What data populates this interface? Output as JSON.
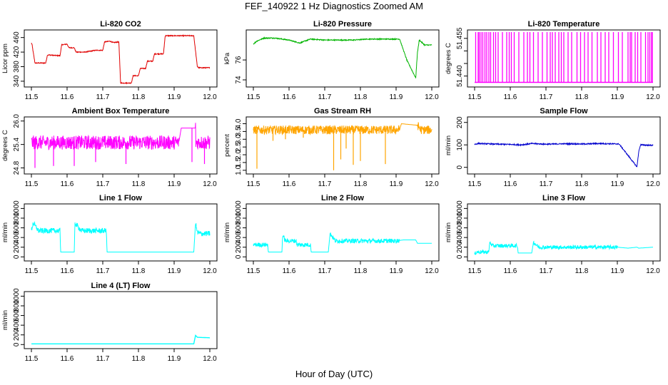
{
  "page": {
    "title": "FEF_140922  1 Hz Diagnostics Zoomed AM",
    "xlabel": "Hour of Day (UTC)"
  },
  "chart_data": [
    {
      "type": "line",
      "title": "Li-820 CO2",
      "ylabel": "Licor ppm",
      "color": "#e00000",
      "xlim": [
        11.5,
        12.0
      ],
      "ylim": [
        330,
        475
      ],
      "xticks": [
        "11.5",
        "11.6",
        "11.7",
        "11.8",
        "11.9",
        "12.0"
      ],
      "yticks": [
        340,
        380,
        420,
        460
      ],
      "ytick_labels": [
        "340",
        "380",
        "420",
        "460"
      ],
      "series": [
        {
          "x": [
            11.5,
            11.502,
            11.505,
            11.51,
            11.54,
            11.545,
            11.55,
            11.58,
            11.585,
            11.6,
            11.605,
            11.62,
            11.625,
            11.65,
            11.68,
            11.7,
            11.705,
            11.72,
            11.73,
            11.745,
            11.75,
            11.78,
            11.785,
            11.8,
            11.805,
            11.82,
            11.825,
            11.84,
            11.845,
            11.87,
            11.875,
            11.95,
            11.955,
            11.965,
            11.97,
            12.0
          ],
          "y": [
            445,
            440,
            420,
            390,
            390,
            412,
            412,
            410,
            440,
            442,
            432,
            432,
            420,
            420,
            425,
            425,
            448,
            450,
            446,
            448,
            335,
            335,
            355,
            355,
            375,
            375,
            395,
            395,
            415,
            415,
            465,
            465,
            465,
            380,
            377,
            377
          ]
        }
      ],
      "noise": 1.2
    },
    {
      "type": "line",
      "title": "Li-820 Pressure",
      "ylabel": "kPa",
      "color": "#00b400",
      "xlim": [
        11.5,
        12.0
      ],
      "ylim": [
        73.5,
        78.8
      ],
      "xticks": [
        "11.5",
        "11.6",
        "11.7",
        "11.8",
        "11.9",
        "12.0"
      ],
      "yticks": [
        74,
        76
      ],
      "ytick_labels": [
        "74",
        "76"
      ],
      "series": [
        {
          "x": [
            11.5,
            11.51,
            11.53,
            11.56,
            11.6,
            11.63,
            11.66,
            11.7,
            11.74,
            11.78,
            11.82,
            11.86,
            11.91,
            11.93,
            11.955,
            11.96,
            11.965,
            11.98,
            12.0
          ],
          "y": [
            77.6,
            77.9,
            78.2,
            78.2,
            78.0,
            77.7,
            78.1,
            78.0,
            78.0,
            78.0,
            78.1,
            78.1,
            78.1,
            76.0,
            74.2,
            76.8,
            78.0,
            77.5,
            77.5
          ]
        }
      ],
      "noise": 0.05
    },
    {
      "type": "line",
      "title": "Li-820 Temperature",
      "ylabel": "degrees C",
      "color": "#ff00ff",
      "xlim": [
        11.5,
        12.0
      ],
      "ylim": [
        51.4365,
        51.4575
      ],
      "xticks": [
        "11.5",
        "11.6",
        "11.7",
        "11.8",
        "11.9",
        "12.0"
      ],
      "yticks": [
        51.44,
        51.445,
        51.45,
        51.455
      ],
      "ytick_labels": [
        "51.440",
        "",
        "",
        "51.455"
      ],
      "series": [
        {
          "x": [
            11.5,
            12.0
          ],
          "y": [
            51.4375,
            51.4375
          ]
        }
      ],
      "spikes": {
        "to": 51.4575,
        "x": [
          11.503,
          11.51,
          11.513,
          11.518,
          11.523,
          11.529,
          11.534,
          11.54,
          11.545,
          11.553,
          11.559,
          11.566,
          11.578,
          11.59,
          11.597,
          11.603,
          11.611,
          11.624,
          11.638,
          11.648,
          11.655,
          11.665,
          11.678,
          11.69,
          11.703,
          11.712,
          11.718,
          11.726,
          11.736,
          11.743,
          11.75,
          11.762,
          11.772,
          11.787,
          11.797,
          11.808,
          11.818,
          11.829,
          11.844,
          11.854,
          11.866,
          11.876,
          11.889,
          11.903,
          11.914,
          11.93,
          11.936,
          11.94,
          11.95,
          11.957,
          11.966,
          11.979,
          11.986,
          11.991,
          11.996,
          11.998
        ]
      }
    },
    {
      "type": "line",
      "title": "Ambient Box Temperature",
      "ylabel": "degrees C",
      "color": "#ff00ff",
      "xlim": [
        11.5,
        12.0
      ],
      "ylim": [
        24.7,
        26.05
      ],
      "xticks": [
        "11.5",
        "11.6",
        "11.7",
        "11.8",
        "11.9",
        "12.0"
      ],
      "yticks": [
        24.8,
        25.4,
        26.0
      ],
      "ytick_labels": [
        "24.8",
        "25.4",
        "26.0"
      ],
      "series": [
        {
          "x": [
            11.5,
            11.6,
            11.7,
            11.8,
            11.913,
            11.92,
            11.96,
            11.96,
            12.0
          ],
          "y": [
            25.45,
            25.45,
            25.45,
            25.45,
            25.45,
            25.82,
            25.82,
            25.45,
            25.45
          ]
        }
      ],
      "noise": 0.18,
      "noise_x": [
        11.5,
        11.913
      ],
      "noise2_x": [
        11.96,
        12.0
      ],
      "drops": [
        [
          11.51,
          24.8
        ],
        [
          11.562,
          24.85
        ],
        [
          11.62,
          24.85
        ],
        [
          11.68,
          24.95
        ],
        [
          11.765,
          24.9
        ],
        [
          11.95,
          24.95
        ],
        [
          11.985,
          24.9
        ]
      ]
    },
    {
      "type": "line",
      "title": "Gas Stream RH",
      "ylabel": "percent",
      "color": "#ffa500",
      "xlim": [
        11.5,
        12.0
      ],
      "ylim": [
        0.9,
        4.3
      ],
      "xticks": [
        "11.5",
        "11.6",
        "11.7",
        "11.8",
        "11.9",
        "12.0"
      ],
      "yticks": [
        1.0,
        1.5,
        2.0,
        2.5,
        3.0,
        3.5,
        4.0
      ],
      "ytick_labels": [
        "1.0",
        "1.5",
        "2.0",
        "2.5",
        "3.0",
        "3.5",
        "4.0"
      ],
      "series": [
        {
          "x": [
            11.5,
            11.9,
            11.91,
            11.915,
            11.96,
            11.97,
            12.0
          ],
          "y": [
            3.6,
            3.6,
            3.65,
            4.0,
            3.9,
            3.6,
            3.6
          ]
        }
      ],
      "noise": 0.28,
      "noise_x": [
        11.5,
        11.91
      ],
      "noise2_x": [
        11.96,
        12.0
      ],
      "drops": [
        [
          11.51,
          1.1
        ],
        [
          11.555,
          2.9
        ],
        [
          11.59,
          3.0
        ],
        [
          11.64,
          3.1
        ],
        [
          11.725,
          1.0
        ],
        [
          11.745,
          1.7
        ],
        [
          11.76,
          2.4
        ],
        [
          11.78,
          1.35
        ],
        [
          11.8,
          1.6
        ],
        [
          11.87,
          1.4
        ]
      ]
    },
    {
      "type": "line",
      "title": "Sample Flow",
      "ylabel": "ml/min",
      "color": "#0000cd",
      "xlim": [
        11.5,
        12.0
      ],
      "ylim": [
        -20,
        215
      ],
      "xticks": [
        "11.5",
        "11.6",
        "11.7",
        "11.8",
        "11.9",
        "12.0"
      ],
      "yticks": [
        0,
        100,
        200
      ],
      "ytick_labels": [
        "0",
        "100",
        "200"
      ],
      "series": [
        {
          "x": [
            11.5,
            11.51,
            11.55,
            11.6,
            11.63,
            11.66,
            11.7,
            11.75,
            11.8,
            11.85,
            11.905,
            11.955,
            11.96,
            11.965,
            12.0
          ],
          "y": [
            102,
            106,
            104,
            102,
            100,
            106,
            103,
            105,
            104,
            106,
            104,
            2,
            70,
            100,
            98
          ]
        }
      ],
      "noise": 2.5
    },
    {
      "type": "line",
      "title": "Line 1 Flow",
      "ylabel": "ml/min",
      "color": "#00ffff",
      "xlim": [
        11.5,
        12.0
      ],
      "ylim": [
        -40,
        1050
      ],
      "xticks": [
        "11.5",
        "11.6",
        "11.7",
        "11.8",
        "11.9",
        "12.0"
      ],
      "yticks": [
        0,
        200,
        400,
        600,
        800,
        1000
      ],
      "ytick_labels": [
        "0",
        "200",
        "400",
        "600",
        "800",
        "1000"
      ],
      "series": [
        {
          "x": [
            11.5,
            11.505,
            11.52,
            11.58,
            11.582,
            11.62,
            11.622,
            11.64,
            11.71,
            11.712,
            11.955,
            11.96,
            11.965,
            11.975,
            12.0
          ],
          "y": [
            550,
            700,
            540,
            540,
            100,
            100,
            700,
            540,
            540,
            100,
            100,
            700,
            500,
            480,
            480
          ]
        }
      ],
      "noise": 55,
      "noise_x": [
        11.5,
        11.58
      ],
      "noise2_x": [
        11.622,
        11.71
      ],
      "noise3_x": [
        11.96,
        12.0
      ]
    },
    {
      "type": "line",
      "title": "Line 2 Flow",
      "ylabel": "ml/min",
      "color": "#00ffff",
      "xlim": [
        11.5,
        12.0
      ],
      "ylim": [
        -40,
        1050
      ],
      "xticks": [
        "11.5",
        "11.6",
        "11.7",
        "11.8",
        "11.9",
        "12.0"
      ],
      "yticks": [
        0,
        200,
        400,
        600,
        800,
        1000
      ],
      "ytick_labels": [
        "0",
        "200",
        "400",
        "600",
        "800",
        "1000"
      ],
      "series": [
        {
          "x": [
            11.5,
            11.54,
            11.542,
            11.58,
            11.582,
            11.59,
            11.62,
            11.622,
            11.66,
            11.662,
            11.71,
            11.715,
            11.73,
            11.9,
            11.92,
            11.955,
            11.96,
            12.0
          ],
          "y": [
            250,
            250,
            100,
            100,
            450,
            330,
            330,
            250,
            250,
            100,
            100,
            480,
            330,
            330,
            350,
            350,
            280,
            280
          ]
        }
      ],
      "noise": 45,
      "noise_x": [
        11.5,
        11.54
      ],
      "noise2_x": [
        11.582,
        11.66
      ],
      "noise3_x": [
        11.715,
        11.91
      ]
    },
    {
      "type": "line",
      "title": "Line 3 Flow",
      "ylabel": "ml/min",
      "color": "#00ffff",
      "xlim": [
        11.5,
        12.0
      ],
      "ylim": [
        -40,
        1050
      ],
      "xticks": [
        "11.5",
        "11.6",
        "11.7",
        "11.8",
        "11.9",
        "12.0"
      ],
      "yticks": [
        0,
        200,
        400,
        600,
        800,
        1000
      ],
      "ytick_labels": [
        "0",
        "200",
        "400",
        "600",
        "800",
        "1000"
      ],
      "series": [
        {
          "x": [
            11.5,
            11.505,
            11.54,
            11.542,
            11.55,
            11.62,
            11.622,
            11.66,
            11.665,
            11.68,
            11.9,
            11.93,
            11.955,
            11.96,
            12.0
          ],
          "y": [
            50,
            100,
            100,
            300,
            230,
            230,
            80,
            80,
            300,
            200,
            200,
            180,
            200,
            180,
            200
          ]
        }
      ],
      "noise": 40,
      "noise_x": [
        11.5,
        11.54
      ],
      "noise2_x": [
        11.542,
        11.62
      ],
      "noise3_x": [
        11.665,
        11.9
      ]
    },
    {
      "type": "line",
      "title": "Line 4 (LT) Flow",
      "ylabel": "ml/min",
      "color": "#00ffff",
      "xlim": [
        11.5,
        12.0
      ],
      "ylim": [
        -40,
        1050
      ],
      "xticks": [
        "11.5",
        "11.6",
        "11.7",
        "11.8",
        "11.9",
        "12.0"
      ],
      "yticks": [
        0,
        200,
        400,
        600,
        800,
        1000
      ],
      "ytick_labels": [
        "0",
        "200",
        "400",
        "600",
        "800",
        "1000"
      ],
      "series": [
        {
          "x": [
            11.5,
            11.955,
            11.96,
            11.965,
            12.0
          ],
          "y": [
            15,
            15,
            190,
            150,
            140
          ]
        }
      ],
      "noise": 0
    }
  ]
}
